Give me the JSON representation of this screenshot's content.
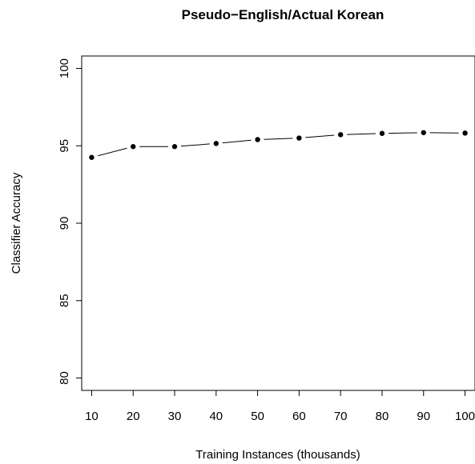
{
  "chart_data": {
    "type": "line",
    "title": "Pseudo−English/Actual Korean",
    "xlabel": "Training Instances (thousands)",
    "ylabel": "Classifier Accuracy",
    "x": [
      10,
      20,
      30,
      40,
      50,
      60,
      70,
      80,
      90,
      100
    ],
    "series": [
      {
        "values": [
          94.25,
          94.95,
          94.95,
          95.15,
          95.4,
          95.5,
          95.72,
          95.8,
          95.85,
          95.82
        ]
      }
    ],
    "xticks": [
      10,
      20,
      30,
      40,
      50,
      60,
      70,
      80,
      90,
      100
    ],
    "yticks": [
      80,
      85,
      90,
      95,
      100
    ],
    "xlim": [
      7.6,
      102.4
    ],
    "ylim": [
      79.2,
      100.8
    ],
    "grid": false,
    "marker": "filled-circle",
    "line_style": "solid",
    "color": "#000000"
  }
}
